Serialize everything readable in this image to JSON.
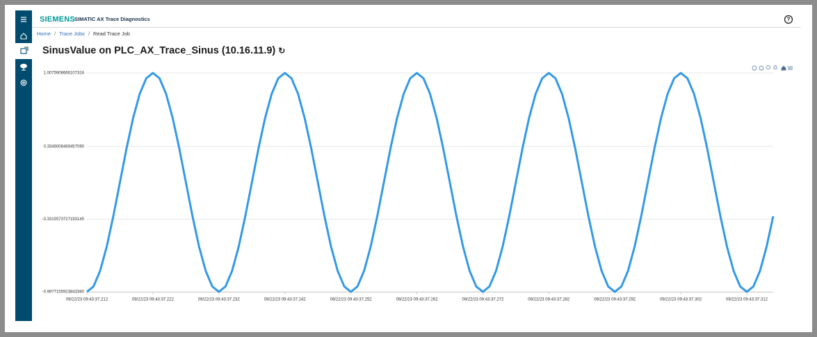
{
  "header": {
    "brand": "SIEMENS",
    "app": "SIMATIC AX Trace Diagnostics"
  },
  "breadcrumb": [
    "Home",
    "Trace Jobs",
    "Read Trace Job"
  ],
  "page_title": "SinusValue on PLC_AX_Trace_Sinus (10.16.11.9)",
  "chart_data": {
    "type": "line",
    "color": "#3399e6",
    "grid": true,
    "xlim": [
      212,
      316
    ],
    "xticks": [
      {
        "value": 212,
        "label": "09/22/23 09:43:37.212"
      },
      {
        "value": 222,
        "label": "09/22/23 09:43:37.222"
      },
      {
        "value": 232,
        "label": "09/22/23 09:43:37.232"
      },
      {
        "value": 242,
        "label": "09/22/23 09:43:37.242"
      },
      {
        "value": 252,
        "label": "09/22/23 09:43:37.252"
      },
      {
        "value": 262,
        "label": "09/22/23 09:43:37.262"
      },
      {
        "value": 272,
        "label": "09/22/23 09:43:37.272"
      },
      {
        "value": 282,
        "label": "09/22/23 09:43:37.282"
      },
      {
        "value": 292,
        "label": "09/22/23 09:43:37.292"
      },
      {
        "value": 302,
        "label": "09/22/23 09:43:37.302"
      },
      {
        "value": 312,
        "label": "09/22/23 09:43:37.312"
      }
    ],
    "ylim": [
      -0.997715592384338,
      1.0075908666107325
    ],
    "yticks": [
      {
        "value": 1.0075908666107325,
        "label": "1.0075908666107324"
      },
      {
        "value": 0.334600846945709,
        "label": "0.3346008469457090"
      },
      -0.3315573727193145,
      {
        "value": -0.997715592384338,
        "label": "-0.9977155923843380"
      }
    ],
    "x": [
      212,
      213,
      214,
      215,
      216,
      217,
      218,
      219,
      220,
      221,
      222,
      223,
      224,
      225,
      226,
      227,
      228,
      229,
      230,
      231,
      232,
      233,
      234,
      235,
      236,
      237,
      238,
      239,
      240,
      241,
      242,
      243,
      244,
      245,
      246,
      247,
      248,
      249,
      250,
      251,
      252,
      253,
      254,
      255,
      256,
      257,
      258,
      259,
      260,
      261,
      262,
      263,
      264,
      265,
      266,
      267,
      268,
      269,
      270,
      271,
      272,
      273,
      274,
      275,
      276,
      277,
      278,
      279,
      280,
      281,
      282,
      283,
      284,
      285,
      286,
      287,
      288,
      289,
      290,
      291,
      292,
      293,
      294,
      295,
      296,
      297,
      298,
      299,
      300,
      301,
      302,
      303,
      304,
      305,
      306,
      307,
      308,
      309,
      310,
      311,
      312,
      313,
      314,
      315,
      316
    ],
    "values": [
      -0.997,
      -0.949,
      -0.806,
      -0.584,
      -0.305,
      0.005,
      0.315,
      0.594,
      0.816,
      0.959,
      1.007,
      0.959,
      0.816,
      0.594,
      0.315,
      0.005,
      -0.305,
      -0.584,
      -0.806,
      -0.949,
      -0.997,
      -0.949,
      -0.806,
      -0.584,
      -0.305,
      0.005,
      0.315,
      0.594,
      0.816,
      0.959,
      1.007,
      0.959,
      0.816,
      0.594,
      0.315,
      0.005,
      -0.305,
      -0.584,
      -0.806,
      -0.949,
      -0.997,
      -0.949,
      -0.806,
      -0.584,
      -0.305,
      0.005,
      0.315,
      0.594,
      0.816,
      0.959,
      1.007,
      0.959,
      0.816,
      0.594,
      0.315,
      0.005,
      -0.305,
      -0.584,
      -0.806,
      -0.949,
      -0.997,
      -0.949,
      -0.806,
      -0.584,
      -0.305,
      0.005,
      0.315,
      0.594,
      0.816,
      0.959,
      1.007,
      0.959,
      0.816,
      0.594,
      0.315,
      0.005,
      -0.305,
      -0.584,
      -0.806,
      -0.949,
      -0.997,
      -0.949,
      -0.806,
      -0.584,
      -0.305,
      0.005,
      0.315,
      0.594,
      0.816,
      0.959,
      1.007,
      0.959,
      0.816,
      0.594,
      0.315,
      0.005,
      -0.305,
      -0.584,
      -0.806,
      -0.949,
      -0.997,
      -0.949,
      -0.806,
      -0.584,
      -0.305
    ]
  }
}
